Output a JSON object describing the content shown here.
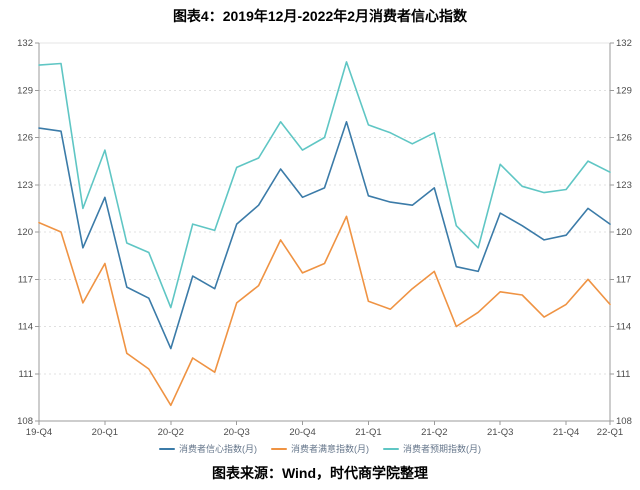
{
  "title": "图表4：2019年12月-2022年2月消费者信心指数",
  "source": "图表来源：Wind，时代商学院整理",
  "colors": {
    "confidence_line": "#3B7BA8",
    "satisfaction_line": "#EF9343",
    "expectation_line": "#5FC6C4",
    "axis": "#9B9B9B",
    "gridline": "#E0E0E0",
    "tick_label": "#4D4D4D",
    "legend_text": "#64758A"
  },
  "chart_data": {
    "type": "line",
    "title": "图表4：2019年12月-2022年2月消费者信心指数",
    "x": [
      "2019-12",
      "2020-01",
      "2020-02",
      "2020-03",
      "2020-04",
      "2020-05",
      "2020-06",
      "2020-07",
      "2020-08",
      "2020-09",
      "2020-10",
      "2020-11",
      "2020-12",
      "2021-01",
      "2021-02",
      "2021-03",
      "2021-04",
      "2021-05",
      "2021-06",
      "2021-07",
      "2021-08",
      "2021-09",
      "2021-10",
      "2021-11",
      "2021-12",
      "2022-01",
      "2022-02"
    ],
    "x_tick_labels": [
      "19-Q4",
      "20-Q1",
      "20-Q2",
      "20-Q3",
      "20-Q4",
      "21-Q1",
      "21-Q2",
      "21-Q3",
      "21-Q4",
      "22-Q1"
    ],
    "x_tick_indices": [
      0,
      3,
      6,
      9,
      12,
      15,
      18,
      21,
      24,
      26
    ],
    "ylim": [
      108,
      132
    ],
    "y_ticks": [
      108,
      111,
      114,
      117,
      120,
      123,
      126,
      129,
      132
    ],
    "grid": true,
    "legend_position": "bottom",
    "series": [
      {
        "name": "消费者信心指数(月)",
        "color": "#3B7BA8",
        "values": [
          126.6,
          126.4,
          119.0,
          122.2,
          116.5,
          115.8,
          112.6,
          117.2,
          116.4,
          120.5,
          121.7,
          124.0,
          122.2,
          122.8,
          127.0,
          122.3,
          121.9,
          121.7,
          122.8,
          117.8,
          117.5,
          121.2,
          120.4,
          119.5,
          119.8,
          121.5,
          120.5
        ]
      },
      {
        "name": "消费者满意指数(月)",
        "color": "#EF9343",
        "values": [
          120.6,
          120.0,
          115.5,
          118.0,
          112.3,
          111.3,
          109.0,
          112.0,
          111.1,
          115.5,
          116.6,
          119.5,
          117.4,
          118.0,
          121.0,
          115.6,
          115.1,
          116.4,
          117.5,
          114.0,
          114.9,
          116.2,
          116.0,
          114.6,
          115.4,
          117.0,
          115.4
        ]
      },
      {
        "name": "消费者预期指数(月)",
        "color": "#5FC6C4",
        "values": [
          130.6,
          130.7,
          121.5,
          125.2,
          119.3,
          118.7,
          115.2,
          120.5,
          120.1,
          124.1,
          124.7,
          127.0,
          125.2,
          126.0,
          130.8,
          126.8,
          126.3,
          125.6,
          126.3,
          120.4,
          119.0,
          124.3,
          122.9,
          122.5,
          122.7,
          124.5,
          123.8
        ]
      }
    ]
  }
}
